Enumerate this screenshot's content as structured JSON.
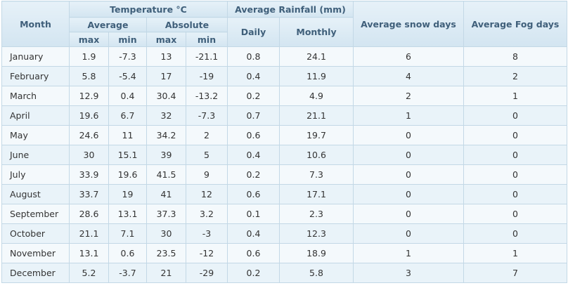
{
  "headers": {
    "month": "Month",
    "temperature": "Temperature °C",
    "average": "Average",
    "absolute": "Absolute",
    "max": "max",
    "min": "min",
    "rainfall": "Average Rainfall (mm)",
    "daily": "Daily",
    "monthly": "Monthly",
    "snow_days": "Average snow days",
    "fog_days": "Average Fog days"
  },
  "rows": [
    [
      "January",
      "1.9",
      "-7.3",
      "13",
      "-21.1",
      "0.8",
      "24.1",
      "6",
      "8"
    ],
    [
      "February",
      "5.8",
      "-5.4",
      "17",
      "-19",
      "0.4",
      "11.9",
      "4",
      "2"
    ],
    [
      "March",
      "12.9",
      "0.4",
      "30.4",
      "-13.2",
      "0.2",
      "4.9",
      "2",
      "1"
    ],
    [
      "April",
      "19.6",
      "6.7",
      "32",
      "-7.3",
      "0.7",
      "21.1",
      "1",
      "0"
    ],
    [
      "May",
      "24.6",
      "11",
      "34.2",
      "2",
      "0.6",
      "19.7",
      "0",
      "0"
    ],
    [
      "June",
      "30",
      "15.1",
      "39",
      "5",
      "0.4",
      "10.6",
      "0",
      "0"
    ],
    [
      "July",
      "33.9",
      "19.6",
      "41.5",
      "9",
      "0.2",
      "7.3",
      "0",
      "0"
    ],
    [
      "August",
      "33.7",
      "19",
      "41",
      "12",
      "0.6",
      "17.1",
      "0",
      "0"
    ],
    [
      "September",
      "28.6",
      "13.1",
      "37.3",
      "3.2",
      "0.1",
      "2.3",
      "0",
      "0"
    ],
    [
      "October",
      "21.1",
      "7.1",
      "30",
      "-3",
      "0.4",
      "12.3",
      "0",
      "0"
    ],
    [
      "November",
      "13.1",
      "0.6",
      "23.5",
      "-12",
      "0.6",
      "18.9",
      "1",
      "1"
    ],
    [
      "December",
      "5.2",
      "-3.7",
      "21",
      "-29",
      "0.2",
      "5.8",
      "3",
      "7"
    ]
  ]
}
